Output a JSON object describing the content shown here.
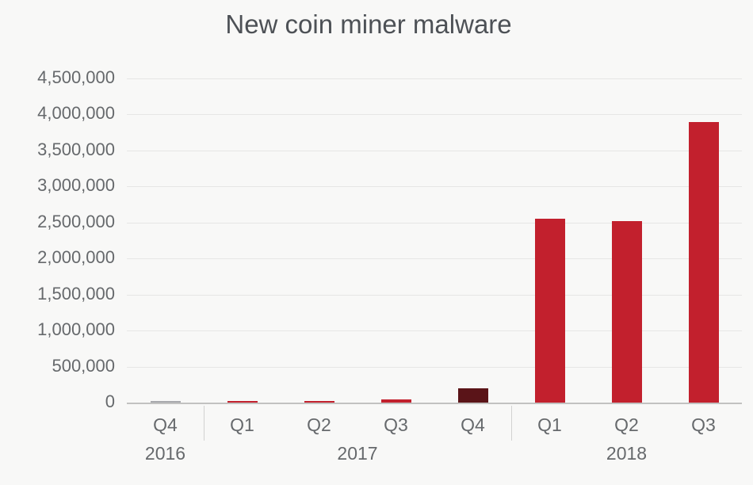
{
  "chart_data": {
    "type": "bar",
    "title": "New coin miner malware",
    "categories": [
      "Q4",
      "Q1",
      "Q2",
      "Q3",
      "Q4",
      "Q1",
      "Q2",
      "Q3"
    ],
    "values": [
      15000,
      25000,
      25000,
      40000,
      200000,
      2550000,
      2520000,
      3900000
    ],
    "bar_colors": [
      "#a8a9ad",
      "#c2202d",
      "#c2202d",
      "#c2202d",
      "#5a1418",
      "#c2202d",
      "#c2202d",
      "#c2202d"
    ],
    "groups": [
      {
        "year": "2016",
        "quarters": 1
      },
      {
        "year": "2017",
        "quarters": 4
      },
      {
        "year": "2018",
        "quarters": 3
      }
    ],
    "xlabel": "",
    "ylabel": "",
    "ylim": [
      0,
      4500000
    ],
    "ytick_step": 500000,
    "ytick_labels": [
      "0",
      "500,000",
      "1,000,000",
      "1,500,000",
      "2,000,000",
      "2,500,000",
      "3,000,000",
      "3,500,000",
      "4,000,000",
      "4,500,000"
    ],
    "grid": "horizontal",
    "legend": "none"
  },
  "colors": {
    "background": "#f8f8f7",
    "bar_red": "#c2202d",
    "bar_dark_red": "#5a1418",
    "bar_gray": "#a8a9ad",
    "gridline": "#e6e6e5",
    "axis_line": "#c2c2c1",
    "title_text": "#4d5156",
    "label_text": "#66696c"
  }
}
